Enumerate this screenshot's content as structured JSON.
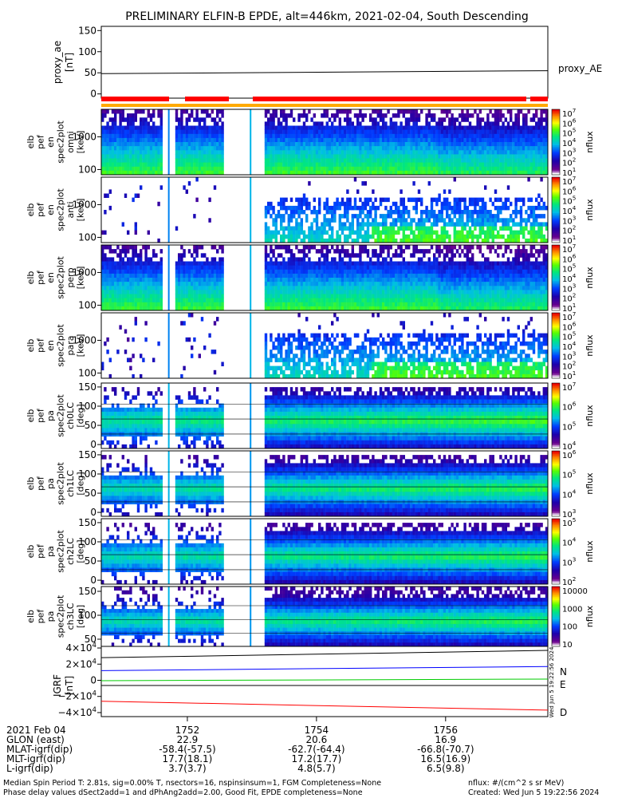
{
  "title": "PRELIMINARY ELFIN-B EPDE, alt=446km, 2021-02-04, South Descending",
  "colors": {
    "N": "#0000ff",
    "E": "#00cc00",
    "D": "#ff0000"
  },
  "proxy_panel": {
    "ylabel": [
      "proxy_ae",
      "[nT]"
    ],
    "ticks": [
      "150",
      "100",
      "50",
      "0"
    ],
    "legend": "proxy_AE",
    "ylim": [
      -10,
      160
    ],
    "line": [
      48,
      55
    ]
  },
  "spectra": [
    {
      "ylabel": [
        "elb",
        "pef",
        "en",
        "spec2plot",
        "omni",
        "[keV]"
      ],
      "ticks": [
        "1000",
        "100"
      ],
      "cb_labels": [
        "10^7",
        "10^6",
        "10^5",
        "10^4",
        "10^3",
        "10^2",
        "10^1"
      ],
      "cb_unit": "nflux"
    },
    {
      "ylabel": [
        "elb",
        "pef",
        "en",
        "spec2plot",
        "anti",
        "[keV]"
      ],
      "ticks": [
        "1000",
        "100"
      ],
      "cb_labels": [
        "10^7",
        "10^6",
        "10^5",
        "10^4",
        "10^3",
        "10^2",
        "10^1"
      ],
      "cb_unit": "nflux"
    },
    {
      "ylabel": [
        "elb",
        "pef",
        "en",
        "spec2plot",
        "perp",
        "[keV]"
      ],
      "ticks": [
        "1000",
        "100"
      ],
      "cb_labels": [
        "10^7",
        "10^6",
        "10^5",
        "10^4",
        "10^3",
        "10^2",
        "10^1"
      ],
      "cb_unit": "nflux"
    },
    {
      "ylabel": [
        "elb",
        "pef",
        "en",
        "spec2plot",
        "para",
        "[keV]"
      ],
      "ticks": [
        "1000",
        "100"
      ],
      "cb_labels": [
        "10^7",
        "10^6",
        "10^5",
        "10^4",
        "10^3",
        "10^2",
        "10^1"
      ],
      "cb_unit": "nflux"
    },
    {
      "ylabel": [
        "elb",
        "pef",
        "pa",
        "spec2plot",
        "ch0LC",
        "[deg]"
      ],
      "ticks": [
        "150",
        "100",
        "50",
        "0"
      ],
      "cb_labels": [
        "10^7",
        "10^6",
        "10^5",
        "10^4"
      ],
      "cb_unit": "nflux"
    },
    {
      "ylabel": [
        "elb",
        "pef",
        "pa",
        "spec2plot",
        "ch1LC",
        "[deg]"
      ],
      "ticks": [
        "150",
        "100",
        "50",
        "0"
      ],
      "cb_labels": [
        "10^6",
        "10^5",
        "10^4",
        "10^3"
      ],
      "cb_unit": "nflux"
    },
    {
      "ylabel": [
        "elb",
        "pef",
        "pa",
        "spec2plot",
        "ch2LC",
        "[deg]"
      ],
      "ticks": [
        "150",
        "100",
        "50",
        "0"
      ],
      "cb_labels": [
        "10^5",
        "10^4",
        "10^3",
        "10^2"
      ],
      "cb_unit": "nflux"
    },
    {
      "ylabel": [
        "elb",
        "pef",
        "pa",
        "spec2plot",
        "ch3LC",
        "[deg]"
      ],
      "ticks": [
        "150",
        "100",
        "50"
      ],
      "cb_labels": [
        "10000",
        "1000",
        "100",
        "10"
      ],
      "cb_unit": "nflux"
    }
  ],
  "igrf_panel": {
    "ylabel": [
      "IGRF",
      "[nT]"
    ],
    "ticks": [
      "4×10^4",
      "2×10^4",
      "0",
      "−2×10^4",
      "−4×10^4"
    ],
    "ylim": [
      -45000,
      42000
    ],
    "legend": [
      "N",
      "E",
      "D"
    ],
    "series": [
      {
        "name": "N",
        "values": [
          12000,
          17000
        ]
      },
      {
        "name": "E",
        "values": [
          -500,
          1500
        ]
      },
      {
        "name": "D",
        "values": [
          -26000,
          -37000
        ]
      },
      {
        "values": [
          28000,
          37000
        ]
      }
    ]
  },
  "chart_data": {
    "type": "heatmap",
    "title": "PRELIMINARY ELFIN-B EPDE, alt=446km, 2021-02-04, South Descending",
    "x_range": [
      "17:50:40",
      "17:57:35"
    ],
    "x_ticks": [
      "1752",
      "1754",
      "1756"
    ],
    "proxy_ae": {
      "ylabel": "proxy_ae [nT]",
      "ylim": [
        -10,
        160
      ],
      "series_name": "proxy_AE",
      "values": [
        48,
        55
      ]
    },
    "panels": [
      {
        "name": "omni",
        "ylabel": "elb pef en spec2plot omni [keV]",
        "scale": "log",
        "ylim": [
          80,
          6000
        ],
        "colorbar": [
          10,
          10000000
        ],
        "units": "nflux"
      },
      {
        "name": "anti",
        "ylabel": "elb pef en spec2plot anti [keV]",
        "scale": "log",
        "ylim": [
          80,
          6000
        ],
        "colorbar": [
          10,
          10000000
        ],
        "units": "nflux"
      },
      {
        "name": "perp",
        "ylabel": "elb pef en spec2plot perp [keV]",
        "scale": "log",
        "ylim": [
          80,
          6000
        ],
        "colorbar": [
          10,
          10000000
        ],
        "units": "nflux"
      },
      {
        "name": "para",
        "ylabel": "elb pef en spec2plot para [keV]",
        "scale": "log",
        "ylim": [
          80,
          6000
        ],
        "colorbar": [
          10,
          10000000
        ],
        "units": "nflux"
      },
      {
        "name": "ch0LC",
        "ylabel": "elb pef pa spec2plot ch0LC [deg]",
        "ylim": [
          0,
          180
        ],
        "colorbar": [
          1000,
          10000000
        ],
        "units": "nflux"
      },
      {
        "name": "ch1LC",
        "ylabel": "elb pef pa spec2plot ch1LC [deg]",
        "ylim": [
          0,
          180
        ],
        "colorbar": [
          100,
          1000000
        ],
        "units": "nflux"
      },
      {
        "name": "ch2LC",
        "ylabel": "elb pef pa spec2plot ch2LC [deg]",
        "ylim": [
          0,
          180
        ],
        "colorbar": [
          10,
          100000
        ],
        "units": "nflux"
      },
      {
        "name": "ch3LC",
        "ylabel": "elb pef pa spec2plot ch3LC [deg]",
        "ylim": [
          30,
          180
        ],
        "colorbar": [
          10,
          10000
        ],
        "units": "nflux"
      }
    ],
    "igrf": {
      "ylabel": "IGRF [nT]",
      "series": [
        "N",
        "E",
        "D"
      ],
      "ylim": [
        -45000,
        42000
      ]
    }
  },
  "xaxis": {
    "rows": [
      {
        "label": "2021 Feb 04",
        "values": [
          "1752",
          "1754",
          "1756"
        ]
      },
      {
        "label": "GLON (east)",
        "values": [
          "22.9",
          "20.6",
          "16.9"
        ]
      },
      {
        "label": "MLAT-igrf(dip)",
        "values": [
          "-58.4(-57.5)",
          "-62.7(-64.4)",
          "-66.8(-70.7)"
        ]
      },
      {
        "label": "MLT-igrf(dip)",
        "values": [
          "17.7(18.1)",
          "17.2(17.7)",
          "16.5(16.9)"
        ]
      },
      {
        "label": "L-igrf(dip)",
        "values": [
          "3.7(3.7)",
          "4.8(5.7)",
          "6.5(9.8)"
        ]
      }
    ]
  },
  "footer": {
    "line1": "Median Spin Period T: 2.81s, sig=0.00% T, nsectors=16, nspinsinsum=1, FGM Completeness=None",
    "line2": "Phase delay values dSect2add=1 and dPhAng2add=2.00, Good Fit, EPDE completeness=None",
    "units": "nflux: #/(cm^2 s sr MeV)",
    "created": "Created: Wed Jun  5 19:22:56 2024"
  },
  "side_stamp": "Wed Jun  5 19:22:56 2024"
}
